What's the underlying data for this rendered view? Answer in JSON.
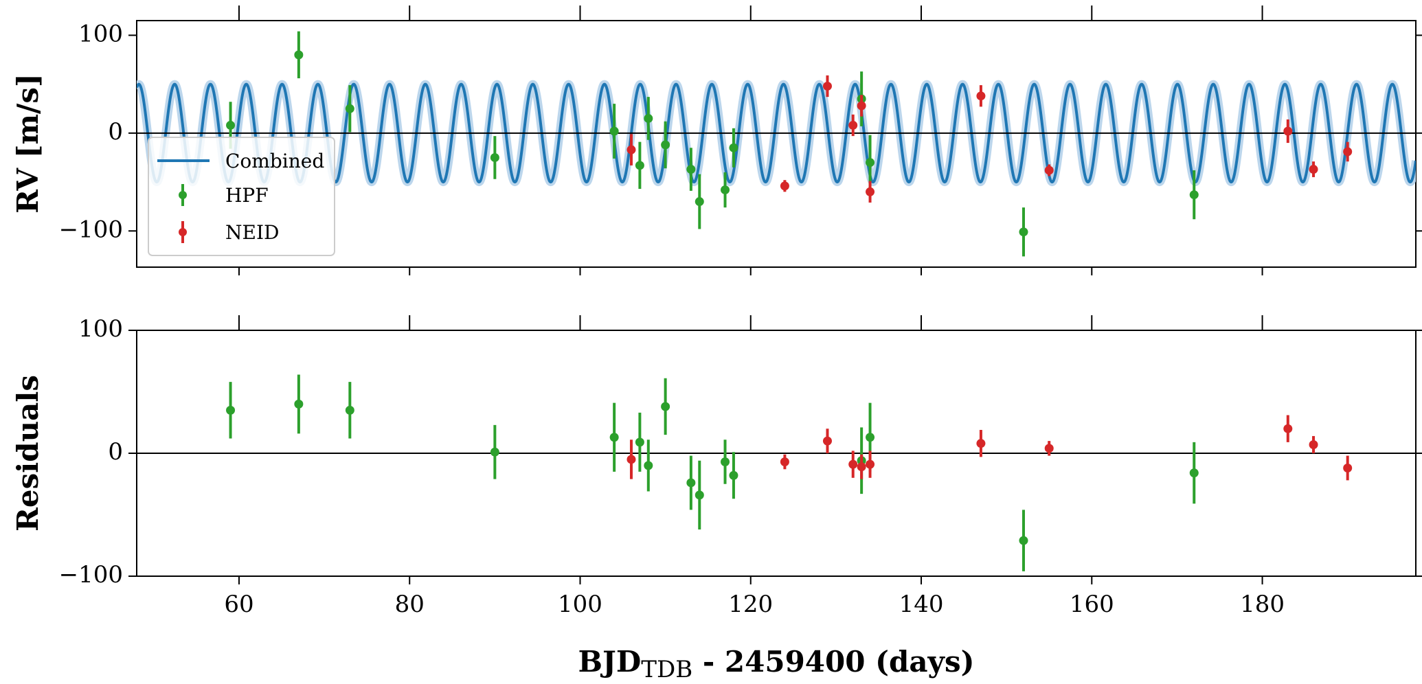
{
  "chart_data": [
    {
      "type": "scatter",
      "panel": "rv",
      "ylabel": "RV [m/s]",
      "xlim": [
        48,
        198
      ],
      "ylim": [
        -137,
        115
      ],
      "yticks": [
        100,
        0,
        -100
      ],
      "ytick_labels": [
        "100",
        "0",
        "−100"
      ],
      "xticks": [
        60,
        80,
        100,
        120,
        140,
        160,
        180
      ],
      "zero_line": true,
      "legend_position": "lower-left",
      "model": {
        "name": "Combined",
        "amplitude": 50,
        "period": 4.2,
        "phase_zero": 55.6,
        "color": "#1f77b4",
        "band_color": "#bcd6ec"
      },
      "series": [
        {
          "name": "HPF",
          "color": "#2ca02c",
          "points": [
            {
              "x": 59,
              "y": 8,
              "err": 24
            },
            {
              "x": 67,
              "y": 80,
              "err": 24
            },
            {
              "x": 73,
              "y": 25,
              "err": 24
            },
            {
              "x": 90,
              "y": -25,
              "err": 22
            },
            {
              "x": 104,
              "y": 2,
              "err": 28
            },
            {
              "x": 107,
              "y": -33,
              "err": 24
            },
            {
              "x": 108,
              "y": 15,
              "err": 22
            },
            {
              "x": 110,
              "y": -12,
              "err": 24
            },
            {
              "x": 113,
              "y": -37,
              "err": 22
            },
            {
              "x": 114,
              "y": -70,
              "err": 28
            },
            {
              "x": 117,
              "y": -58,
              "err": 18
            },
            {
              "x": 118,
              "y": -15,
              "err": 20
            },
            {
              "x": 133,
              "y": 35,
              "err": 28
            },
            {
              "x": 134,
              "y": -30,
              "err": 28
            },
            {
              "x": 152,
              "y": -101,
              "err": 25
            },
            {
              "x": 172,
              "y": -63,
              "err": 25
            }
          ]
        },
        {
          "name": "NEID",
          "color": "#d62728",
          "points": [
            {
              "x": 106,
              "y": -17,
              "err": 16
            },
            {
              "x": 124,
              "y": -54,
              "err": 6
            },
            {
              "x": 129,
              "y": 48,
              "err": 11
            },
            {
              "x": 132,
              "y": 8,
              "err": 11
            },
            {
              "x": 133,
              "y": 28,
              "err": 11
            },
            {
              "x": 134,
              "y": -60,
              "err": 11
            },
            {
              "x": 147,
              "y": 38,
              "err": 11
            },
            {
              "x": 155,
              "y": -38,
              "err": 6
            },
            {
              "x": 183,
              "y": 2,
              "err": 12
            },
            {
              "x": 186,
              "y": -37,
              "err": 8
            },
            {
              "x": 190,
              "y": -19,
              "err": 10
            }
          ]
        }
      ]
    },
    {
      "type": "scatter",
      "panel": "residuals",
      "ylabel": "Residuals",
      "xlabel_main": "BJD",
      "xlabel_sub": "TDB",
      "xlabel_rest": " - 2459400 (days)",
      "xlim": [
        48,
        198
      ],
      "ylim": [
        -100,
        100
      ],
      "yticks": [
        100,
        0,
        -100
      ],
      "ytick_labels": [
        "100",
        "0",
        "−100"
      ],
      "xticks": [
        60,
        80,
        100,
        120,
        140,
        160,
        180
      ],
      "xtick_labels": [
        "60",
        "80",
        "100",
        "120",
        "140",
        "160",
        "180"
      ],
      "zero_line": true,
      "series": [
        {
          "name": "HPF",
          "color": "#2ca02c",
          "points": [
            {
              "x": 59,
              "y": 35,
              "err": 23
            },
            {
              "x": 67,
              "y": 40,
              "err": 24
            },
            {
              "x": 73,
              "y": 35,
              "err": 23
            },
            {
              "x": 90,
              "y": 1,
              "err": 22
            },
            {
              "x": 104,
              "y": 13,
              "err": 28
            },
            {
              "x": 107,
              "y": 9,
              "err": 24
            },
            {
              "x": 108,
              "y": -10,
              "err": 21
            },
            {
              "x": 110,
              "y": 38,
              "err": 23
            },
            {
              "x": 113,
              "y": -24,
              "err": 22
            },
            {
              "x": 114,
              "y": -34,
              "err": 28
            },
            {
              "x": 117,
              "y": -7,
              "err": 18
            },
            {
              "x": 118,
              "y": -18,
              "err": 19
            },
            {
              "x": 133,
              "y": -6,
              "err": 27
            },
            {
              "x": 134,
              "y": 13,
              "err": 28
            },
            {
              "x": 152,
              "y": -71,
              "err": 25
            },
            {
              "x": 172,
              "y": -16,
              "err": 25
            }
          ]
        },
        {
          "name": "NEID",
          "color": "#d62728",
          "points": [
            {
              "x": 106,
              "y": -5,
              "err": 16
            },
            {
              "x": 124,
              "y": -7,
              "err": 6
            },
            {
              "x": 129,
              "y": 10,
              "err": 10
            },
            {
              "x": 132,
              "y": -9,
              "err": 11
            },
            {
              "x": 133,
              "y": -11,
              "err": 10
            },
            {
              "x": 134,
              "y": -9,
              "err": 11
            },
            {
              "x": 147,
              "y": 8,
              "err": 11
            },
            {
              "x": 155,
              "y": 4,
              "err": 6
            },
            {
              "x": 183,
              "y": 20,
              "err": 11
            },
            {
              "x": 186,
              "y": 7,
              "err": 7
            },
            {
              "x": 190,
              "y": -12,
              "err": 10
            }
          ]
        }
      ]
    }
  ]
}
